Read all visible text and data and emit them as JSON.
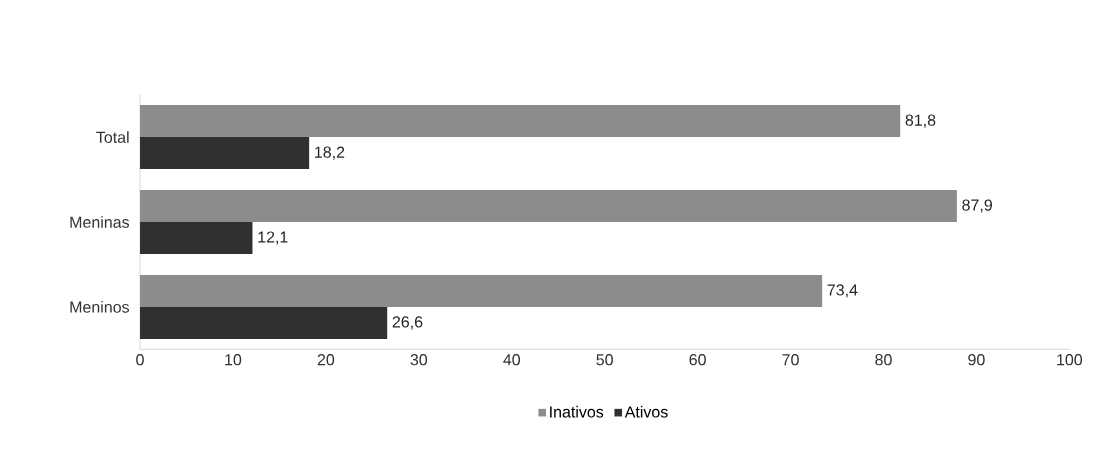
{
  "chart_data": {
    "type": "bar",
    "orientation": "horizontal",
    "categories": [
      "Total",
      "Meninas",
      "Meninos"
    ],
    "series": [
      {
        "name": "Inativos",
        "color": "#8c8c8c",
        "values": [
          81.8,
          87.9,
          73.4
        ],
        "value_labels": [
          "81,8",
          "87,9",
          "73,4"
        ]
      },
      {
        "name": "Ativos",
        "color": "#303030",
        "values": [
          18.2,
          12.1,
          26.6
        ],
        "value_labels": [
          "18,2",
          "12,1",
          "26,6"
        ]
      }
    ],
    "xlim": [
      0,
      100
    ],
    "xticks": [
      0,
      10,
      20,
      30,
      40,
      50,
      60,
      70,
      80,
      90,
      100
    ],
    "grid": false,
    "legend": "bottom"
  }
}
